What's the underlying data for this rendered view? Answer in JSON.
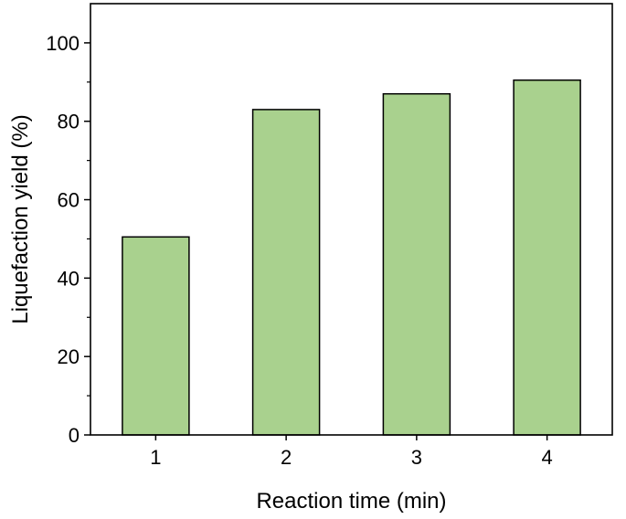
{
  "chart_data": {
    "type": "bar",
    "title": "",
    "xlabel": "Reaction time (min)",
    "ylabel": "Liquefaction yield (%)",
    "categories": [
      "1",
      "2",
      "3",
      "4"
    ],
    "values": [
      50.5,
      83,
      87,
      90.5
    ],
    "ylim": [
      0,
      110
    ],
    "yticks": [
      0,
      20,
      40,
      60,
      80,
      100
    ],
    "grid": false,
    "legend": "none",
    "colors": {
      "bar_fill": "#a9d18e",
      "bar_stroke": "#000000",
      "axis": "#000000"
    }
  }
}
